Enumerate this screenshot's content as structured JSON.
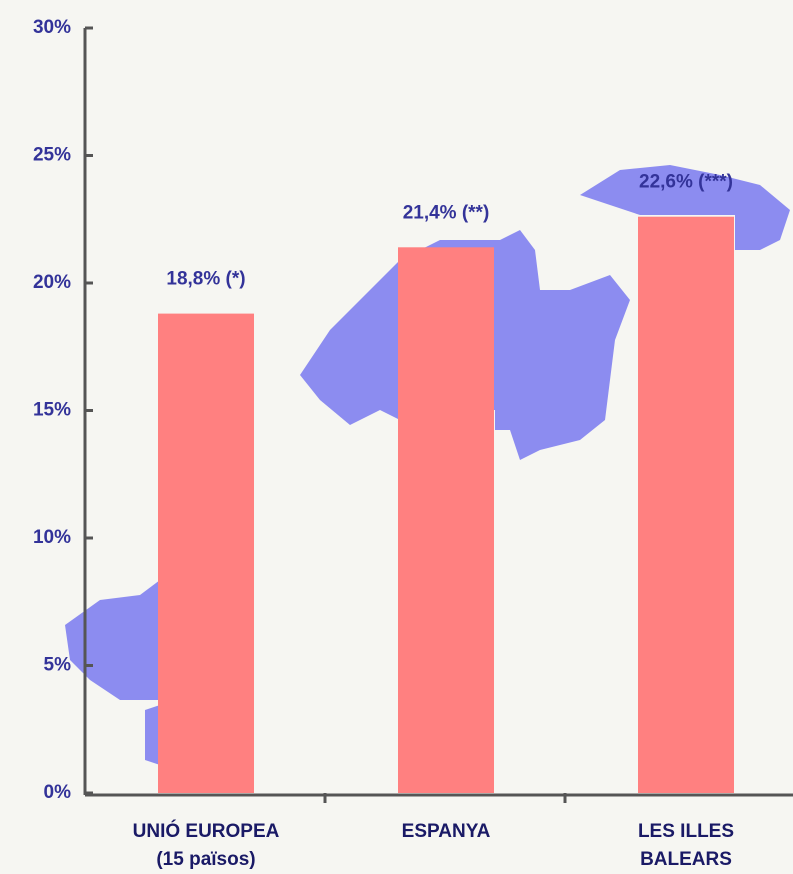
{
  "chart_data": {
    "type": "bar",
    "categories": [
      "UNIÓ EUROPEA\n(15 països)",
      "ESPANYA",
      "LES ILLES\nBALEARS"
    ],
    "values": [
      18.8,
      21.4,
      22.6
    ],
    "value_labels": [
      "18,8% (*)",
      "21,4% (**)",
      "22,6% (***)"
    ],
    "color": "#ff8080",
    "ylim": [
      0,
      30
    ],
    "yticks": [
      {
        "value": 0,
        "label": "0%"
      },
      {
        "value": 5,
        "label": "5%"
      },
      {
        "value": 10,
        "label": "10%"
      },
      {
        "value": 15,
        "label": "15%"
      },
      {
        "value": 20,
        "label": "20%"
      },
      {
        "value": 25,
        "label": "25%"
      },
      {
        "value": 30,
        "label": "30%"
      }
    ],
    "grid": false
  }
}
